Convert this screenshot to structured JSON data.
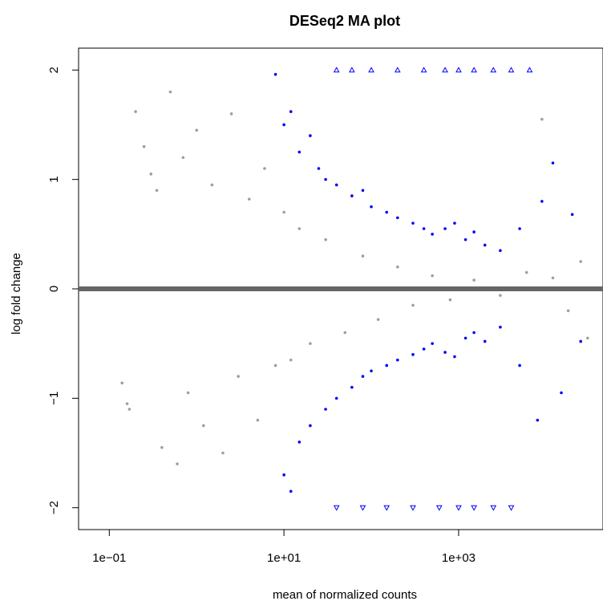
{
  "chart_data": {
    "type": "scatter",
    "title": "DESeq2 MA plot",
    "xlabel": "mean of normalized counts",
    "ylabel": "log fold change",
    "x_scale": "log10",
    "xlim": [
      0.0445,
      45000
    ],
    "ylim": [
      -2.2,
      2.2
    ],
    "x_ticks": [
      {
        "value": 0.1,
        "label": "1e−01"
      },
      {
        "value": 10,
        "label": "1e+01"
      },
      {
        "value": 1000,
        "label": "1e+03"
      }
    ],
    "y_ticks": [
      {
        "value": -2,
        "label": "−2"
      },
      {
        "value": -1,
        "label": "−1"
      },
      {
        "value": 0,
        "label": "0"
      },
      {
        "value": 1,
        "label": "1"
      },
      {
        "value": 2,
        "label": "2"
      }
    ],
    "grid": false,
    "legend": "none",
    "reference_line": {
      "y": 0,
      "color": "#666666"
    },
    "colors": {
      "not_significant": "#9e9e9e",
      "significant": "#0000ff"
    },
    "series": [
      {
        "color_key": "not_significant",
        "marker": "dot",
        "points": [
          [
            0.14,
            -0.86
          ],
          [
            0.16,
            -1.05
          ],
          [
            0.17,
            -1.1
          ],
          [
            0.2,
            1.62
          ],
          [
            0.25,
            1.3
          ],
          [
            0.3,
            1.05
          ],
          [
            0.35,
            0.9
          ],
          [
            0.4,
            -1.45
          ],
          [
            0.5,
            1.8
          ],
          [
            0.6,
            -1.6
          ],
          [
            0.7,
            1.2
          ],
          [
            0.8,
            -0.95
          ],
          [
            1.0,
            1.45
          ],
          [
            1.2,
            -1.25
          ],
          [
            1.5,
            0.95
          ],
          [
            2.0,
            -1.5
          ],
          [
            2.5,
            1.6
          ],
          [
            3.0,
            -0.8
          ],
          [
            4.0,
            0.82
          ],
          [
            5.0,
            -1.2
          ],
          [
            6.0,
            1.1
          ],
          [
            8.0,
            -0.7
          ],
          [
            10,
            0.7
          ],
          [
            12,
            -0.65
          ],
          [
            15,
            0.55
          ],
          [
            20,
            -0.5
          ],
          [
            30,
            0.45
          ],
          [
            50,
            -0.4
          ],
          [
            80,
            0.3
          ],
          [
            120,
            -0.28
          ],
          [
            200,
            0.2
          ],
          [
            300,
            -0.15
          ],
          [
            500,
            0.12
          ],
          [
            800,
            -0.1
          ],
          [
            1500,
            0.08
          ],
          [
            3000,
            -0.06
          ],
          [
            6000,
            0.15
          ],
          [
            9000,
            1.55
          ],
          [
            12000,
            0.1
          ],
          [
            18000,
            -0.2
          ],
          [
            25000,
            0.25
          ],
          [
            30000,
            -0.45
          ]
        ]
      },
      {
        "color_key": "significant",
        "marker": "dot",
        "points": [
          [
            8,
            1.96
          ],
          [
            10,
            1.5
          ],
          [
            12,
            1.62
          ],
          [
            15,
            1.25
          ],
          [
            20,
            1.4
          ],
          [
            25,
            1.1
          ],
          [
            30,
            1.0
          ],
          [
            40,
            0.95
          ],
          [
            60,
            0.85
          ],
          [
            80,
            0.9
          ],
          [
            100,
            0.75
          ],
          [
            150,
            0.7
          ],
          [
            200,
            0.65
          ],
          [
            300,
            0.6
          ],
          [
            400,
            0.55
          ],
          [
            500,
            0.5
          ],
          [
            700,
            0.55
          ],
          [
            900,
            0.6
          ],
          [
            1200,
            0.45
          ],
          [
            1500,
            0.52
          ],
          [
            2000,
            0.4
          ],
          [
            3000,
            0.35
          ],
          [
            5000,
            0.55
          ],
          [
            9000,
            0.8
          ],
          [
            12000,
            1.15
          ],
          [
            20000,
            0.68
          ],
          [
            10,
            -1.7
          ],
          [
            12,
            -1.85
          ],
          [
            15,
            -1.4
          ],
          [
            20,
            -1.25
          ],
          [
            30,
            -1.1
          ],
          [
            40,
            -1.0
          ],
          [
            60,
            -0.9
          ],
          [
            80,
            -0.8
          ],
          [
            100,
            -0.75
          ],
          [
            150,
            -0.7
          ],
          [
            200,
            -0.65
          ],
          [
            300,
            -0.6
          ],
          [
            400,
            -0.55
          ],
          [
            500,
            -0.5
          ],
          [
            700,
            -0.58
          ],
          [
            900,
            -0.62
          ],
          [
            1200,
            -0.45
          ],
          [
            1500,
            -0.4
          ],
          [
            2000,
            -0.48
          ],
          [
            3000,
            -0.35
          ],
          [
            5000,
            -0.7
          ],
          [
            8000,
            -1.2
          ],
          [
            15000,
            -0.95
          ],
          [
            25000,
            -0.48
          ]
        ]
      },
      {
        "color_key": "significant",
        "marker": "triangle-up",
        "points": [
          [
            40,
            2.0
          ],
          [
            60,
            2.0
          ],
          [
            100,
            2.0
          ],
          [
            200,
            2.0
          ],
          [
            400,
            2.0
          ],
          [
            700,
            2.0
          ],
          [
            1000,
            2.0
          ],
          [
            1500,
            2.0
          ],
          [
            2500,
            2.0
          ],
          [
            4000,
            2.0
          ],
          [
            6500,
            2.0
          ]
        ]
      },
      {
        "color_key": "significant",
        "marker": "triangle-down",
        "points": [
          [
            40,
            -2.0
          ],
          [
            80,
            -2.0
          ],
          [
            150,
            -2.0
          ],
          [
            300,
            -2.0
          ],
          [
            600,
            -2.0
          ],
          [
            1000,
            -2.0
          ],
          [
            1500,
            -2.0
          ],
          [
            2500,
            -2.0
          ],
          [
            4000,
            -2.0
          ]
        ]
      }
    ]
  }
}
